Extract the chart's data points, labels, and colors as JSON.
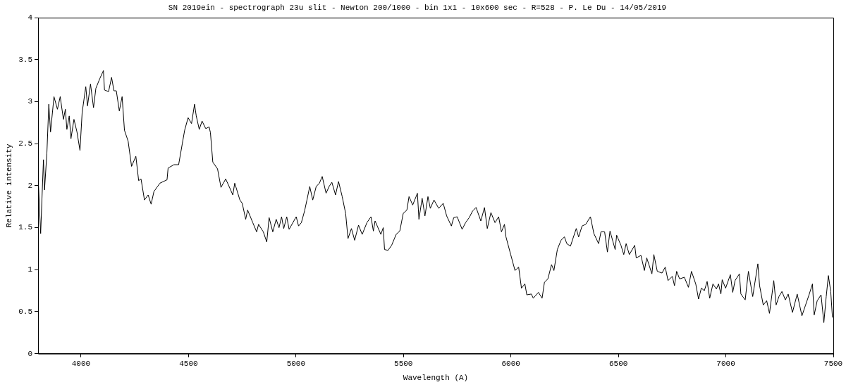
{
  "chart_data": {
    "type": "line",
    "title": "SN 2019ein - spectrograph 23u slit - Newton 200/1000 - bin 1x1 - 10x600 sec - R=528 - P. Le Du - 14/05/2019",
    "xlabel": "Wavelength (A)",
    "ylabel": "Relative intensity",
    "x": [
      3800,
      3812,
      3825,
      3830,
      3841,
      3850,
      3858,
      3874,
      3890,
      3903,
      3918,
      3927,
      3934,
      3945,
      3953,
      3967,
      3981,
      3995,
      4005,
      4022,
      4030,
      4044,
      4058,
      4069,
      4088,
      4104,
      4109,
      4128,
      4142,
      4153,
      4164,
      4178,
      4191,
      4202,
      4219,
      4235,
      4255,
      4268,
      4279,
      4295,
      4312,
      4326,
      4339,
      4367,
      4400,
      4405,
      4432,
      4454,
      4471,
      4482,
      4498,
      4514,
      4528,
      4536,
      4550,
      4563,
      4580,
      4596,
      4602,
      4613,
      4635,
      4651,
      4673,
      4689,
      4706,
      4715,
      4739,
      4750,
      4766,
      4775,
      4799,
      4817,
      4826,
      4848,
      4864,
      4875,
      4892,
      4908,
      4921,
      4933,
      4943,
      4957,
      4968,
      5001,
      5012,
      5025,
      5040,
      5051,
      5064,
      5078,
      5094,
      5109,
      5122,
      5140,
      5154,
      5167,
      5184,
      5198,
      5215,
      5231,
      5242,
      5258,
      5273,
      5291,
      5308,
      5330,
      5349,
      5360,
      5368,
      5395,
      5406,
      5412,
      5428,
      5445,
      5466,
      5483,
      5499,
      5516,
      5526,
      5543,
      5565,
      5572,
      5587,
      5600,
      5614,
      5625,
      5642,
      5664,
      5685,
      5701,
      5723,
      5734,
      5750,
      5773,
      5789,
      5806,
      5822,
      5838,
      5860,
      5877,
      5890,
      5907,
      5926,
      5943,
      5956,
      5970,
      5977,
      5999,
      6019,
      6036,
      6049,
      6065,
      6074,
      6095,
      6104,
      6128,
      6145,
      6156,
      6172,
      6189,
      6200,
      6216,
      6233,
      6249,
      6260,
      6277,
      6304,
      6315,
      6331,
      6348,
      6370,
      6386,
      6408,
      6419,
      6436,
      6449,
      6461,
      6485,
      6492,
      6512,
      6525,
      6536,
      6551,
      6576,
      6583,
      6605,
      6621,
      6632,
      6656,
      6665,
      6681,
      6703,
      6718,
      6731,
      6751,
      6761,
      6771,
      6785,
      6807,
      6826,
      6840,
      6860,
      6873,
      6886,
      6900,
      6913,
      6925,
      6940,
      6956,
      6966,
      6977,
      6983,
      6999,
      7021,
      7032,
      7043,
      7063,
      7070,
      7090,
      7105,
      7125,
      7149,
      7157,
      7174,
      7190,
      7203,
      7223,
      7234,
      7247,
      7261,
      7277,
      7290,
      7310,
      7332,
      7354,
      7371,
      7387,
      7403,
      7411,
      7425,
      7443,
      7456,
      7467,
      7477,
      7488,
      7496
    ],
    "series": [
      {
        "color": "#000000",
        "values": [
          2.12,
          1.43,
          2.31,
          1.95,
          2.39,
          2.97,
          2.64,
          3.06,
          2.91,
          3.06,
          2.79,
          2.91,
          2.67,
          2.83,
          2.56,
          2.79,
          2.64,
          2.42,
          2.87,
          3.18,
          2.95,
          3.21,
          2.93,
          3.16,
          3.28,
          3.37,
          3.14,
          3.12,
          3.29,
          3.13,
          3.13,
          2.89,
          3.06,
          2.66,
          2.53,
          2.23,
          2.35,
          2.06,
          2.08,
          1.83,
          1.89,
          1.78,
          1.93,
          2.03,
          2.07,
          2.21,
          2.25,
          2.25,
          2.5,
          2.66,
          2.81,
          2.74,
          2.97,
          2.83,
          2.67,
          2.77,
          2.68,
          2.7,
          2.63,
          2.28,
          2.2,
          1.98,
          2.08,
          1.99,
          1.89,
          2.03,
          1.83,
          1.79,
          1.6,
          1.71,
          1.56,
          1.45,
          1.54,
          1.45,
          1.33,
          1.62,
          1.45,
          1.6,
          1.5,
          1.63,
          1.49,
          1.63,
          1.48,
          1.63,
          1.52,
          1.56,
          1.7,
          1.83,
          1.99,
          1.83,
          1.99,
          2.03,
          2.11,
          1.91,
          1.99,
          2.04,
          1.89,
          2.05,
          1.87,
          1.67,
          1.37,
          1.49,
          1.35,
          1.53,
          1.42,
          1.56,
          1.63,
          1.46,
          1.58,
          1.42,
          1.5,
          1.24,
          1.23,
          1.29,
          1.42,
          1.46,
          1.67,
          1.71,
          1.87,
          1.77,
          1.91,
          1.6,
          1.85,
          1.64,
          1.87,
          1.73,
          1.83,
          1.73,
          1.79,
          1.64,
          1.52,
          1.62,
          1.63,
          1.48,
          1.56,
          1.62,
          1.7,
          1.74,
          1.58,
          1.74,
          1.49,
          1.68,
          1.56,
          1.63,
          1.45,
          1.54,
          1.39,
          1.18,
          0.99,
          1.03,
          0.78,
          0.83,
          0.7,
          0.71,
          0.66,
          0.73,
          0.66,
          0.85,
          0.89,
          1.06,
          0.99,
          1.24,
          1.35,
          1.39,
          1.31,
          1.28,
          1.49,
          1.39,
          1.52,
          1.54,
          1.63,
          1.43,
          1.31,
          1.45,
          1.45,
          1.21,
          1.46,
          1.24,
          1.41,
          1.29,
          1.18,
          1.31,
          1.18,
          1.29,
          1.14,
          1.17,
          0.99,
          1.14,
          0.95,
          1.18,
          0.98,
          0.96,
          1.03,
          0.87,
          0.92,
          0.81,
          0.98,
          0.89,
          0.91,
          0.79,
          0.98,
          0.83,
          0.65,
          0.78,
          0.75,
          0.86,
          0.66,
          0.83,
          0.77,
          0.83,
          0.71,
          0.88,
          0.78,
          0.94,
          0.73,
          0.87,
          0.95,
          0.71,
          0.64,
          0.98,
          0.68,
          1.07,
          0.81,
          0.58,
          0.63,
          0.48,
          0.87,
          0.58,
          0.68,
          0.74,
          0.64,
          0.71,
          0.49,
          0.71,
          0.45,
          0.58,
          0.7,
          0.83,
          0.46,
          0.63,
          0.7,
          0.37,
          0.68,
          0.93,
          0.74,
          0.43
        ]
      }
    ],
    "xlim": [
      3800,
      7500
    ],
    "xticks": [
      4000,
      4500,
      5000,
      5500,
      6000,
      6500,
      7000,
      7500
    ],
    "ylim": [
      0,
      4
    ],
    "yticks": [
      0,
      0.5,
      1,
      1.5,
      2,
      2.5,
      3,
      3.5,
      4
    ],
    "grid": false,
    "legend": false,
    "marker": "none",
    "line_style": "solid"
  }
}
